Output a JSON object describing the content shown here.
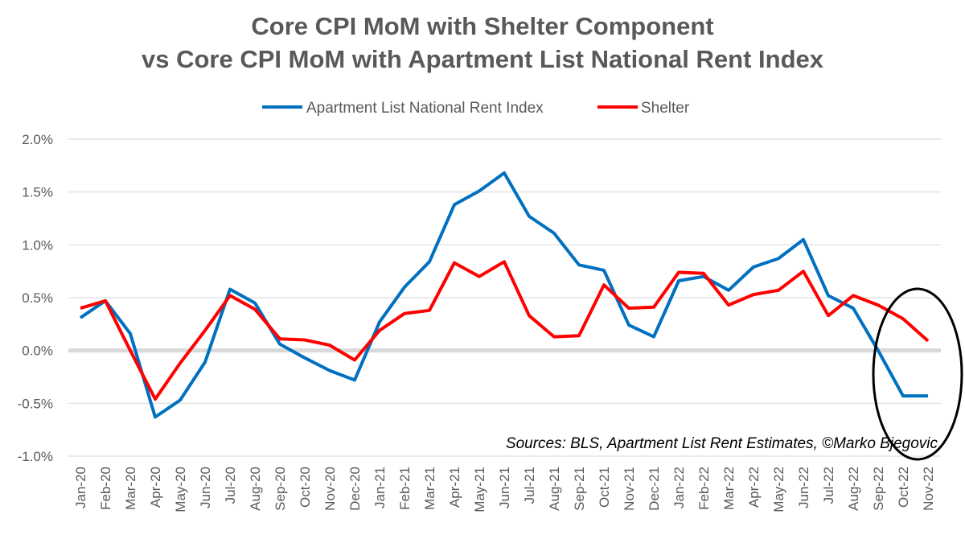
{
  "chart_data": {
    "type": "line",
    "title": [
      "Core CPI MoM with Shelter Component",
      "vs Core CPI MoM with Apartment List National Rent Index"
    ],
    "xlabel": "",
    "ylabel": "",
    "ylim": [
      -1.0,
      2.0
    ],
    "yticks": [
      2.0,
      1.5,
      1.0,
      0.5,
      0.0,
      -0.5,
      -1.0
    ],
    "ytick_labels": [
      "2.0%",
      "1.5%",
      "1.0%",
      "0.5%",
      "0.0%",
      "-0.5%",
      "-1.0%"
    ],
    "grid": true,
    "legend_position": "top-center",
    "categories": [
      "Jan-20",
      "Feb-20",
      "Mar-20",
      "Apr-20",
      "May-20",
      "Jun-20",
      "Jul-20",
      "Aug-20",
      "Sep-20",
      "Oct-20",
      "Nov-20",
      "Dec-20",
      "Jan-21",
      "Feb-21",
      "Mar-21",
      "Apr-21",
      "May-21",
      "Jun-21",
      "Jul-21",
      "Aug-21",
      "Sep-21",
      "Oct-21",
      "Nov-21",
      "Dec-21",
      "Jan-22",
      "Feb-22",
      "Mar-22",
      "Apr-22",
      "May-22",
      "Jun-22",
      "Jul-22",
      "Aug-22",
      "Sep-22",
      "Oct-22",
      "Nov-22"
    ],
    "series": [
      {
        "name": "Apartment List National Rent Index",
        "color": "#0070C0",
        "values": [
          0.31,
          0.47,
          0.16,
          -0.63,
          -0.47,
          -0.11,
          0.58,
          0.45,
          0.06,
          -0.07,
          -0.19,
          -0.28,
          0.27,
          0.6,
          0.84,
          1.38,
          1.51,
          1.68,
          1.27,
          1.11,
          0.81,
          0.76,
          0.24,
          0.13,
          0.66,
          0.7,
          0.57,
          0.79,
          0.87,
          1.05,
          0.52,
          0.4,
          0.0,
          -0.43,
          -0.43
        ]
      },
      {
        "name": "Shelter",
        "color": "#FF0000",
        "values": [
          0.4,
          0.47,
          0.0,
          -0.46,
          -0.12,
          0.19,
          0.52,
          0.39,
          0.11,
          0.1,
          0.05,
          -0.09,
          0.19,
          0.35,
          0.38,
          0.83,
          0.7,
          0.84,
          0.33,
          0.13,
          0.14,
          0.62,
          0.4,
          0.41,
          0.74,
          0.73,
          0.43,
          0.53,
          0.57,
          0.75,
          0.33,
          0.52,
          0.43,
          0.3,
          0.09
        ]
      }
    ],
    "annotations": [
      "Sources: BLS, Apartment List Rent Estimates, ©Marko Bjegovic"
    ],
    "highlight": "ellipse around Sep-22 to Nov-22"
  }
}
